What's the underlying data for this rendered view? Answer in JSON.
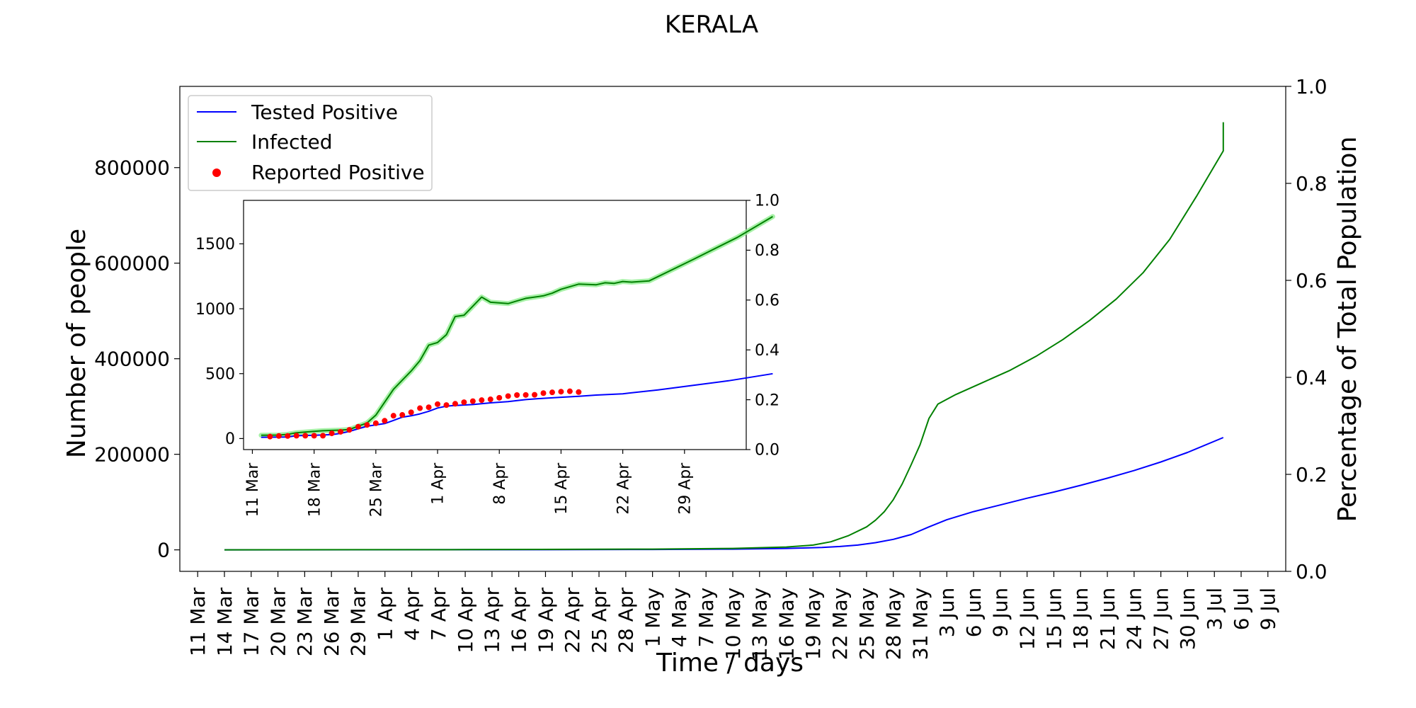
{
  "chart_data": [
    {
      "type": "line",
      "title": "KERALA",
      "xlabel": "Time / days",
      "ylabel": "Number of people",
      "ylabel_right": "Percentage of Total Population",
      "x_axis": "date",
      "xlim": [
        "2020-03-09",
        "2020-07-11"
      ],
      "ylim": [
        -45000,
        970000
      ],
      "ylim_right": [
        0.0,
        1.0
      ],
      "yticks": [
        0,
        200000,
        400000,
        600000,
        800000
      ],
      "yticks_right": [
        "0.0",
        "0.2",
        "0.4",
        "0.6",
        "0.8",
        "1.0"
      ],
      "xtick_labels": [
        "11 Mar",
        "14 Mar",
        "17 Mar",
        "20 Mar",
        "23 Mar",
        "26 Mar",
        "29 Mar",
        "1 Apr",
        "4 Apr",
        "7 Apr",
        "10 Apr",
        "13 Apr",
        "16 Apr",
        "19 Apr",
        "22 Apr",
        "25 Apr",
        "28 Apr",
        "1 May",
        "4 May",
        "7 May",
        "10 May",
        "13 May",
        "16 May",
        "19 May",
        "22 May",
        "25 May",
        "28 May",
        "31 May",
        "3 Jun",
        "6 Jun",
        "9 Jun",
        "12 Jun",
        "15 Jun",
        "18 Jun",
        "21 Jun",
        "24 Jun",
        "27 Jun",
        "30 Jun",
        "3 Jul",
        "6 Jul",
        "9 Jul"
      ],
      "legend_position": "upper left",
      "grid": false,
      "series": [
        {
          "name": "Tested Positive",
          "color": "#0000ff",
          "points": [
            [
              "2020-03-14",
              0
            ],
            [
              "2020-04-14",
              300
            ],
            [
              "2020-05-01",
              800
            ],
            [
              "2020-05-10",
              1500
            ],
            [
              "2020-05-16",
              3000
            ],
            [
              "2020-05-20",
              5000
            ],
            [
              "2020-05-22",
              7000
            ],
            [
              "2020-05-24",
              10000
            ],
            [
              "2020-05-26",
              15000
            ],
            [
              "2020-05-28",
              22000
            ],
            [
              "2020-05-30",
              32000
            ],
            [
              "2020-06-01",
              48000
            ],
            [
              "2020-06-03",
              63000
            ],
            [
              "2020-06-06",
              80000
            ],
            [
              "2020-06-09",
              94000
            ],
            [
              "2020-06-12",
              108000
            ],
            [
              "2020-06-15",
              121000
            ],
            [
              "2020-06-18",
              135000
            ],
            [
              "2020-06-21",
              150000
            ],
            [
              "2020-06-24",
              166000
            ],
            [
              "2020-06-27",
              184000
            ],
            [
              "2020-06-30",
              204000
            ],
            [
              "2020-07-04",
              235000
            ]
          ]
        },
        {
          "name": "Infected",
          "color": "#008000",
          "points": [
            [
              "2020-03-14",
              0
            ],
            [
              "2020-04-10",
              500
            ],
            [
              "2020-05-01",
              1500
            ],
            [
              "2020-05-10",
              3000
            ],
            [
              "2020-05-16",
              6000
            ],
            [
              "2020-05-19",
              10000
            ],
            [
              "2020-05-21",
              17000
            ],
            [
              "2020-05-23",
              30000
            ],
            [
              "2020-05-25",
              48000
            ],
            [
              "2020-05-26",
              62000
            ],
            [
              "2020-05-27",
              80000
            ],
            [
              "2020-05-28",
              105000
            ],
            [
              "2020-05-29",
              138000
            ],
            [
              "2020-05-30",
              178000
            ],
            [
              "2020-05-31",
              220000
            ],
            [
              "2020-06-01",
              275000
            ],
            [
              "2020-06-02",
              305000
            ],
            [
              "2020-06-04",
              325000
            ],
            [
              "2020-06-07",
              350000
            ],
            [
              "2020-06-10",
              375000
            ],
            [
              "2020-06-13",
              405000
            ],
            [
              "2020-06-16",
              440000
            ],
            [
              "2020-06-19",
              480000
            ],
            [
              "2020-06-22",
              525000
            ],
            [
              "2020-06-25",
              580000
            ],
            [
              "2020-06-28",
              650000
            ],
            [
              "2020-07-01",
              740000
            ],
            [
              "2020-07-04",
              835000
            ],
            [
              "2020-07-04",
              895000
            ]
          ]
        },
        {
          "name": "Reported Positive",
          "color": "#ff0000",
          "marker": "dot",
          "points": []
        }
      ]
    },
    {
      "type": "line",
      "title": "",
      "x_axis": "date",
      "xlim": [
        "2020-03-10",
        "2020-05-06"
      ],
      "ylim": [
        -85,
        1835
      ],
      "ylim_right": [
        0.0,
        1.0
      ],
      "yticks": [
        0,
        500,
        1000,
        1500
      ],
      "yticks_right": [
        "0.0",
        "0.2",
        "0.4",
        "0.6",
        "0.8",
        "1.0"
      ],
      "xtick_labels": [
        "11 Mar",
        "18 Mar",
        "25 Mar",
        "1 Apr",
        "8 Apr",
        "15 Apr",
        "22 Apr",
        "29 Apr"
      ],
      "series": [
        {
          "name": "Infected",
          "color": "#008000",
          "band_color": "#90ee90",
          "points": [
            [
              "2020-03-12",
              25
            ],
            [
              "2020-03-14",
              27
            ],
            [
              "2020-03-15",
              32
            ],
            [
              "2020-03-16",
              45
            ],
            [
              "2020-03-18",
              55
            ],
            [
              "2020-03-19",
              60
            ],
            [
              "2020-03-21",
              65
            ],
            [
              "2020-03-22",
              70
            ],
            [
              "2020-03-24",
              120
            ],
            [
              "2020-03-25",
              180
            ],
            [
              "2020-03-26",
              280
            ],
            [
              "2020-03-27",
              380
            ],
            [
              "2020-03-28",
              450
            ],
            [
              "2020-03-29",
              520
            ],
            [
              "2020-03-30",
              600
            ],
            [
              "2020-03-31",
              720
            ],
            [
              "2020-04-01",
              740
            ],
            [
              "2020-04-02",
              800
            ],
            [
              "2020-04-03",
              940
            ],
            [
              "2020-04-04",
              950
            ],
            [
              "2020-04-05",
              1020
            ],
            [
              "2020-04-06",
              1090
            ],
            [
              "2020-04-07",
              1050
            ],
            [
              "2020-04-09",
              1040
            ],
            [
              "2020-04-10",
              1060
            ],
            [
              "2020-04-11",
              1080
            ],
            [
              "2020-04-13",
              1100
            ],
            [
              "2020-04-14",
              1120
            ],
            [
              "2020-04-15",
              1150
            ],
            [
              "2020-04-16",
              1170
            ],
            [
              "2020-04-17",
              1190
            ],
            [
              "2020-04-19",
              1185
            ],
            [
              "2020-04-20",
              1200
            ],
            [
              "2020-04-21",
              1195
            ],
            [
              "2020-04-22",
              1210
            ],
            [
              "2020-04-23",
              1205
            ],
            [
              "2020-04-25",
              1215
            ],
            [
              "2020-04-30",
              1380
            ],
            [
              "2020-05-05",
              1550
            ],
            [
              "2020-05-09",
              1710
            ]
          ]
        },
        {
          "name": "Tested Positive",
          "color": "#0000ff",
          "points": [
            [
              "2020-03-12",
              10
            ],
            [
              "2020-03-15",
              12
            ],
            [
              "2020-03-16",
              22
            ],
            [
              "2020-03-18",
              25
            ],
            [
              "2020-03-20",
              30
            ],
            [
              "2020-03-21",
              40
            ],
            [
              "2020-03-22",
              55
            ],
            [
              "2020-03-23",
              75
            ],
            [
              "2020-03-24",
              95
            ],
            [
              "2020-03-26",
              115
            ],
            [
              "2020-03-27",
              140
            ],
            [
              "2020-03-28",
              165
            ],
            [
              "2020-03-29",
              175
            ],
            [
              "2020-03-30",
              190
            ],
            [
              "2020-03-31",
              210
            ],
            [
              "2020-04-01",
              235
            ],
            [
              "2020-04-02",
              250
            ],
            [
              "2020-04-03",
              255
            ],
            [
              "2020-04-05",
              262
            ],
            [
              "2020-04-07",
              275
            ],
            [
              "2020-04-09",
              285
            ],
            [
              "2020-04-11",
              300
            ],
            [
              "2020-04-13",
              310
            ],
            [
              "2020-04-15",
              318
            ],
            [
              "2020-04-17",
              325
            ],
            [
              "2020-04-19",
              335
            ],
            [
              "2020-04-22",
              345
            ],
            [
              "2020-04-26",
              375
            ],
            [
              "2020-04-30",
              410
            ],
            [
              "2020-05-04",
              445
            ],
            [
              "2020-05-09",
              500
            ]
          ]
        },
        {
          "name": "Reported Positive",
          "color": "#ff0000",
          "marker": "dot",
          "points": [
            [
              "2020-03-13",
              15
            ],
            [
              "2020-03-14",
              20
            ],
            [
              "2020-03-15",
              20
            ],
            [
              "2020-03-16",
              22
            ],
            [
              "2020-03-17",
              22
            ],
            [
              "2020-03-18",
              22
            ],
            [
              "2020-03-19",
              22
            ],
            [
              "2020-03-20",
              40
            ],
            [
              "2020-03-21",
              52
            ],
            [
              "2020-03-22",
              67
            ],
            [
              "2020-03-23",
              91
            ],
            [
              "2020-03-24",
              105
            ],
            [
              "2020-03-25",
              118
            ],
            [
              "2020-03-26",
              137
            ],
            [
              "2020-03-27",
              176
            ],
            [
              "2020-03-28",
              182
            ],
            [
              "2020-03-29",
              202
            ],
            [
              "2020-03-30",
              234
            ],
            [
              "2020-03-31",
              241
            ],
            [
              "2020-04-01",
              265
            ],
            [
              "2020-04-02",
              258
            ],
            [
              "2020-04-03",
              268
            ],
            [
              "2020-04-04",
              280
            ],
            [
              "2020-04-05",
              288
            ],
            [
              "2020-04-06",
              296
            ],
            [
              "2020-04-07",
              302
            ],
            [
              "2020-04-08",
              314
            ],
            [
              "2020-04-09",
              327
            ],
            [
              "2020-04-10",
              335
            ],
            [
              "2020-04-11",
              336
            ],
            [
              "2020-04-12",
              337
            ],
            [
              "2020-04-13",
              350
            ],
            [
              "2020-04-14",
              356
            ],
            [
              "2020-04-15",
              361
            ],
            [
              "2020-04-16",
              364
            ],
            [
              "2020-04-17",
              358
            ]
          ]
        }
      ]
    }
  ],
  "legend": {
    "items": [
      {
        "label": "Tested Positive",
        "color": "#0000ff",
        "kind": "line"
      },
      {
        "label": "Infected",
        "color": "#008000",
        "kind": "line"
      },
      {
        "label": "Reported Positive",
        "color": "#ff0000",
        "kind": "dot"
      }
    ]
  }
}
